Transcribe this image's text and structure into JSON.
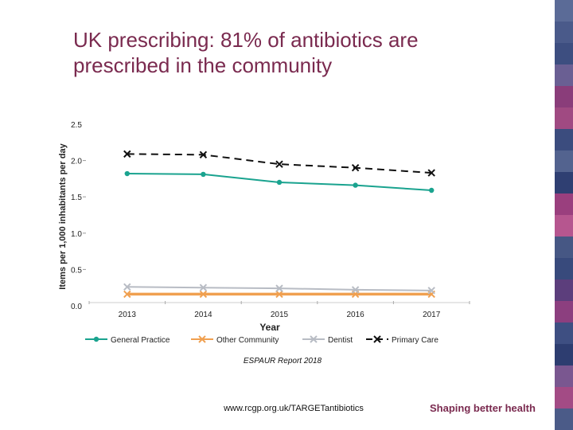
{
  "slide": {
    "title_line1": "UK prescribing: 81% of antibiotics are",
    "title_line2": "prescribed in the community",
    "source": "ESPAUR Report 2018",
    "url": "www.rcgp.org.uk/TARGETantibiotics",
    "brand": "Shaping better health",
    "title_color": "#7a2a4f",
    "stripe_colors": [
      "#5b6b97",
      "#4a5a8a",
      "#3d4e80",
      "#6a5f93",
      "#8a3d7a",
      "#a04a82",
      "#3b4c7e",
      "#53638f",
      "#2f3f72",
      "#9a3f7e",
      "#b6568f",
      "#465784",
      "#384a7c",
      "#5c3e7c",
      "#8c3f7f",
      "#3e4f82",
      "#2d3d70",
      "#7a5790",
      "#a34b85",
      "#4b5b88"
    ]
  },
  "chart_data": {
    "type": "line",
    "title": "",
    "xlabel": "Year",
    "ylabel": "Items per 1,000 inhabitants per day",
    "categories": [
      "2013",
      "2014",
      "2015",
      "2016",
      "2017"
    ],
    "ylim": [
      0,
      2.5
    ],
    "yticks": [
      "0.0",
      "0.5",
      "1.0",
      "1.5",
      "2.0",
      "2.5"
    ],
    "series": [
      {
        "name": "General Practice",
        "values": [
          1.82,
          1.81,
          1.7,
          1.66,
          1.59
        ],
        "color": "#1aa38f",
        "marker": "dot",
        "dash": "solid"
      },
      {
        "name": "Other Community",
        "values": [
          0.16,
          0.16,
          0.16,
          0.16,
          0.16
        ],
        "color": "#f0a050",
        "marker": "x",
        "dash": "solid"
      },
      {
        "name": "Dentist",
        "values": [
          0.26,
          0.25,
          0.24,
          0.22,
          0.21
        ],
        "color": "#b8bcc4",
        "marker": "x",
        "dash": "solid"
      },
      {
        "name": "Primary Care",
        "values": [
          2.09,
          2.08,
          1.95,
          1.9,
          1.83
        ],
        "color": "#111111",
        "marker": "x",
        "dash": "dashed"
      }
    ]
  }
}
